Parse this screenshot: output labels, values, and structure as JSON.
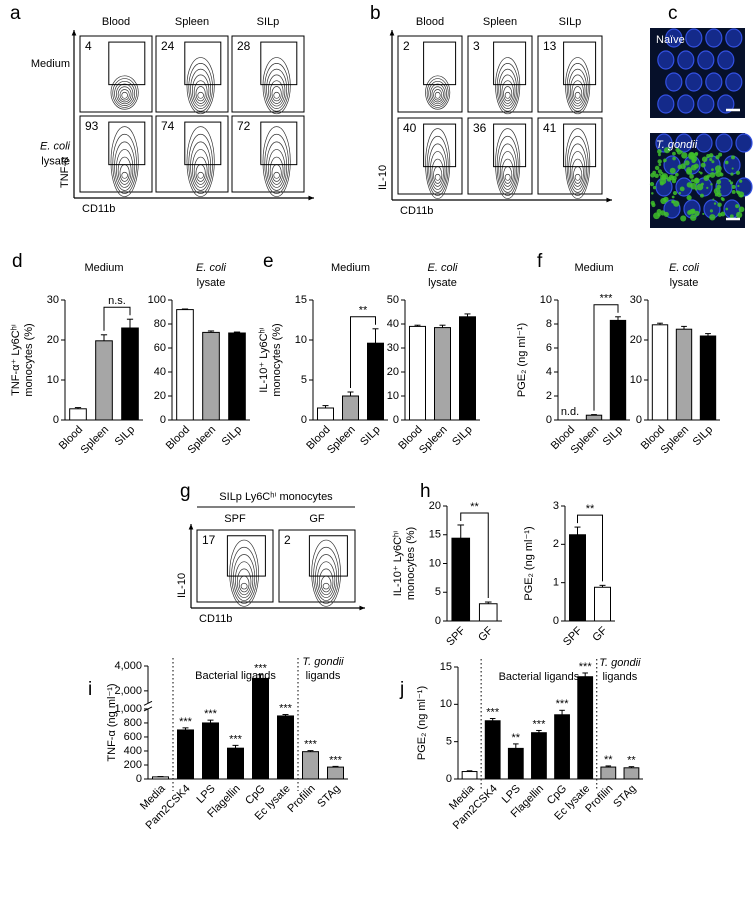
{
  "flow": [
    {
      "panel": "a",
      "columns": [
        "Blood",
        "Spleen",
        "SILp"
      ],
      "rows": [
        [
          "Medium"
        ],
        [
          "E. coli",
          "lysate"
        ]
      ],
      "gates": [
        [
          4,
          24,
          28
        ],
        [
          93,
          74,
          72
        ]
      ],
      "ylabel": "TNF-α",
      "xlabel": "CD11b"
    },
    {
      "panel": "b",
      "columns": [
        "Blood",
        "Spleen",
        "SILp"
      ],
      "gates": [
        [
          2,
          3,
          13
        ],
        [
          40,
          36,
          41
        ]
      ],
      "ylabel": "IL-10",
      "xlabel": "CD11b"
    },
    {
      "panel": "g",
      "header": "SILp Ly6Cʰⁱ monocytes",
      "columns": [
        "SPF",
        "GF"
      ],
      "gates": [
        [
          17,
          2
        ]
      ],
      "ylabel": "IL-10",
      "xlabel": "CD11b"
    }
  ],
  "images": {
    "panel": "c",
    "labels": [
      "Naïve",
      "T. gondii"
    ]
  },
  "chart_data": [
    {
      "type": "bar",
      "panel": "d",
      "title": [
        "Medium"
      ],
      "ylabel": [
        "TNF-α⁺ Ly6Cʰⁱ",
        "monocytes (%)"
      ],
      "categories": [
        "Blood",
        "Spleen",
        "SILp"
      ],
      "values": [
        2.8,
        19.8,
        23
      ],
      "errors": [
        0.3,
        1.5,
        2.2
      ],
      "colors": [
        "#ffffff",
        "#a6a6a6",
        "#000000"
      ],
      "ylim": [
        0,
        30
      ],
      "yticks": [
        0,
        10,
        20,
        30
      ],
      "comparison": [
        "Spleen",
        "SILp"
      ],
      "comparison_label": "n.s."
    },
    {
      "type": "bar",
      "title": [
        "E. coli",
        "lysate"
      ],
      "categories": [
        "Blood",
        "Spleen",
        "SILp"
      ],
      "values": [
        92,
        73,
        72.5
      ],
      "errors": [
        0.5,
        1.2,
        0.8
      ],
      "colors": [
        "#ffffff",
        "#a6a6a6",
        "#000000"
      ],
      "ylim": [
        0,
        100
      ],
      "yticks": [
        0,
        20,
        40,
        60,
        80,
        100
      ]
    },
    {
      "type": "bar",
      "panel": "e",
      "title": [
        "Medium"
      ],
      "ylabel": [
        "IL-10⁺ Ly6Cʰⁱ",
        "monocytes (%)"
      ],
      "categories": [
        "Blood",
        "Spleen",
        "SILp"
      ],
      "values": [
        1.5,
        3,
        9.6
      ],
      "errors": [
        0.3,
        0.5,
        1.8
      ],
      "colors": [
        "#ffffff",
        "#a6a6a6",
        "#000000"
      ],
      "ylim": [
        0,
        15
      ],
      "yticks": [
        0,
        5,
        10,
        15
      ],
      "comparison": [
        "Spleen",
        "SILp"
      ],
      "comparison_label": "**"
    },
    {
      "type": "bar",
      "title": [
        "E. coli",
        "lysate"
      ],
      "categories": [
        "Blood",
        "Spleen",
        "SILp"
      ],
      "values": [
        39,
        38.5,
        43
      ],
      "errors": [
        0.5,
        1,
        1.2
      ],
      "colors": [
        "#ffffff",
        "#a6a6a6",
        "#000000"
      ],
      "ylim": [
        0,
        50
      ],
      "yticks": [
        0,
        10,
        20,
        30,
        40,
        50
      ]
    },
    {
      "type": "bar",
      "panel": "f",
      "title": [
        "Medium"
      ],
      "ylabel": [
        "PGE₂ (ng ml⁻¹)"
      ],
      "categories": [
        "Blood",
        "Spleen",
        "SILp"
      ],
      "values": [
        null,
        0.4,
        8.3
      ],
      "errors": [
        null,
        0.05,
        0.3
      ],
      "value_labels": [
        "n.d.",
        null,
        null
      ],
      "colors": [
        "#ffffff",
        "#a6a6a6",
        "#000000"
      ],
      "ylim": [
        0,
        10
      ],
      "yticks": [
        0,
        2,
        4,
        6,
        8,
        10
      ],
      "comparison": [
        "Spleen",
        "SILp"
      ],
      "comparison_label": "***"
    },
    {
      "type": "bar",
      "title": [
        "E. coli",
        "lysate"
      ],
      "categories": [
        "Blood",
        "Spleen",
        "SILp"
      ],
      "values": [
        23.8,
        22.7,
        21
      ],
      "errors": [
        0.4,
        0.7,
        0.6
      ],
      "colors": [
        "#ffffff",
        "#a6a6a6",
        "#000000"
      ],
      "ylim": [
        0,
        30
      ],
      "yticks": [
        0,
        10,
        20,
        30
      ]
    },
    {
      "type": "bar",
      "panel": "h",
      "ylabel": [
        "IL-10⁺ Ly6Cʰⁱ",
        "monocytes (%)"
      ],
      "categories": [
        "SPF",
        "GF"
      ],
      "values": [
        14.4,
        3
      ],
      "errors": [
        2.3,
        0.3
      ],
      "colors": [
        "#000000",
        "#ffffff"
      ],
      "ylim": [
        0,
        20
      ],
      "yticks": [
        0,
        5,
        10,
        15,
        20
      ],
      "comparison": [
        "SPF",
        "GF"
      ],
      "comparison_label": "**"
    },
    {
      "type": "bar",
      "ylabel": [
        "PGE₂ (ng ml⁻¹)"
      ],
      "categories": [
        "SPF",
        "GF"
      ],
      "values": [
        2.25,
        0.88
      ],
      "errors": [
        0.2,
        0.05
      ],
      "colors": [
        "#000000",
        "#ffffff"
      ],
      "ylim": [
        0,
        3
      ],
      "yticks": [
        0,
        1,
        2,
        3
      ],
      "comparison": [
        "SPF",
        "GF"
      ],
      "comparison_label": "**"
    },
    {
      "type": "bar",
      "panel": "i",
      "ylabel": [
        "TNF-α (ng ml⁻¹)"
      ],
      "categories": [
        "Media",
        "Pam2CSK4",
        "LPS",
        "Flagellin",
        "CpG",
        "Ec lysate",
        "Profilin",
        "STAg"
      ],
      "values": [
        30,
        700,
        800,
        440,
        3000,
        900,
        390,
        170
      ],
      "errors": [
        5,
        30,
        40,
        40,
        300,
        20,
        15,
        10
      ],
      "annotations": [
        null,
        "***",
        "***",
        "***",
        "***",
        "***",
        "***",
        "***"
      ],
      "colors": [
        "#ffffff",
        "#000000",
        "#000000",
        "#000000",
        "#000000",
        "#000000",
        "#a6a6a6",
        "#a6a6a6"
      ],
      "y_segments": [
        {
          "ylim": [
            0,
            1000
          ],
          "yticks": [
            0,
            200,
            400,
            600,
            800,
            {
              "value": 1000,
              "label": "1,000"
            }
          ]
        },
        {
          "ylim": [
            1000,
            4000
          ],
          "yticks": [
            {
              "value": 2000,
              "label": "2,000"
            },
            {
              "value": 4000,
              "label": "4,000"
            }
          ]
        }
      ],
      "groups": [
        {
          "lines": [
            "Bacterial ligands"
          ],
          "color": "#000000"
        },
        {
          "lines": [
            "T. gondii",
            "ligands"
          ],
          "color": "#a6a6a6"
        }
      ]
    },
    {
      "type": "bar",
      "panel": "j",
      "ylabel": [
        "PGE₂ (ng ml⁻¹)"
      ],
      "categories": [
        "Media",
        "Pam2CSK4",
        "LPS",
        "Flagellin",
        "CpG",
        "Ec lysate",
        "Profilin",
        "STAg"
      ],
      "values": [
        1.0,
        7.8,
        4.1,
        6.2,
        8.6,
        13.7,
        1.6,
        1.5
      ],
      "errors": [
        0.1,
        0.3,
        0.6,
        0.3,
        0.6,
        0.5,
        0.15,
        0.15
      ],
      "annotations": [
        null,
        "***",
        "**",
        "***",
        "***",
        "***",
        "**",
        "**"
      ],
      "colors": [
        "#ffffff",
        "#000000",
        "#000000",
        "#000000",
        "#000000",
        "#000000",
        "#a6a6a6",
        "#a6a6a6"
      ],
      "ylim": [
        0,
        15
      ],
      "yticks": [
        0,
        5,
        10,
        15
      ],
      "groups": [
        {
          "lines": [
            "Bacterial ligands"
          ],
          "color": "#000000"
        },
        {
          "lines": [
            "T. gondii",
            "ligands"
          ],
          "color": "#a6a6a6"
        }
      ]
    }
  ]
}
